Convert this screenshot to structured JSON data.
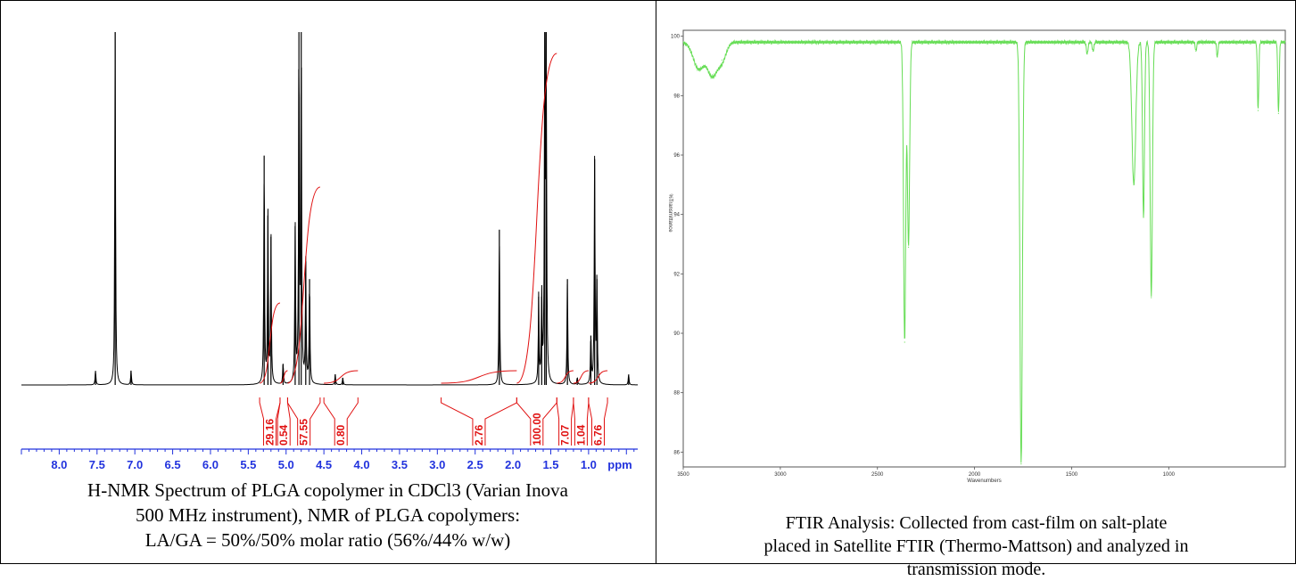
{
  "nmr": {
    "caption_lines": [
      "H-NMR Spectrum of PLGA copolymer in CDCl3 (Varian Inova",
      "500 MHz instrument), NMR of PLGA copolymers:",
      "LA/GA = 50%/50% molar ratio (56%/44% w/w)"
    ]
  },
  "ftir": {
    "caption_lines": [
      "FTIR Analysis: Collected from cast-film on salt-plate",
      "placed in Satellite FTIR (Thermo-Mattson) and analyzed in",
      "transmission mode."
    ]
  },
  "colors": {
    "nmr_spectrum": "#000000",
    "nmr_integral": "#e01010",
    "nmr_axis": "#2233dd",
    "ftir_spectrum": "#66dd55",
    "ftir_axis": "#555555"
  },
  "chart_data": [
    {
      "type": "line",
      "name": "nmr",
      "xlabel": "ppm",
      "x_reversed": true,
      "xlim": [
        8.5,
        0.35
      ],
      "x_ticks": [
        "8.0",
        "7.5",
        "7.0",
        "6.5",
        "6.0",
        "5.5",
        "5.0",
        "4.5",
        "4.0",
        "3.5",
        "3.0",
        "2.5",
        "2.0",
        "1.5",
        "1.0"
      ],
      "x_tick_values": [
        8.0,
        7.5,
        7.0,
        6.5,
        6.0,
        5.5,
        5.0,
        4.5,
        4.0,
        3.5,
        3.0,
        2.5,
        2.0,
        1.5,
        1.0
      ],
      "peaks": [
        {
          "ppm": 7.26,
          "height": 1.0
        },
        {
          "ppm": 7.52,
          "height": 0.04
        },
        {
          "ppm": 7.05,
          "height": 0.04
        },
        {
          "ppm": 5.29,
          "height": 0.65
        },
        {
          "ppm": 5.24,
          "height": 0.48
        },
        {
          "ppm": 5.2,
          "height": 0.42
        },
        {
          "ppm": 5.04,
          "height": 0.06
        },
        {
          "ppm": 4.88,
          "height": 0.45
        },
        {
          "ppm": 4.83,
          "height": 1.0
        },
        {
          "ppm": 4.8,
          "height": 1.0
        },
        {
          "ppm": 4.74,
          "height": 0.35
        },
        {
          "ppm": 4.69,
          "height": 0.3
        },
        {
          "ppm": 4.35,
          "height": 0.03
        },
        {
          "ppm": 4.25,
          "height": 0.02
        },
        {
          "ppm": 2.18,
          "height": 0.44
        },
        {
          "ppm": 1.66,
          "height": 0.25
        },
        {
          "ppm": 1.62,
          "height": 0.25
        },
        {
          "ppm": 1.58,
          "height": 1.0
        },
        {
          "ppm": 1.56,
          "height": 1.0
        },
        {
          "ppm": 1.28,
          "height": 0.3
        },
        {
          "ppm": 1.15,
          "height": 0.02
        },
        {
          "ppm": 0.97,
          "height": 0.14
        },
        {
          "ppm": 0.92,
          "height": 0.64
        },
        {
          "ppm": 0.89,
          "height": 0.3
        },
        {
          "ppm": 0.47,
          "height": 0.03
        }
      ],
      "integrals": [
        {
          "value": "29.16",
          "from": 5.35,
          "to": 5.08
        },
        {
          "value": "0.54",
          "from": 5.08,
          "to": 4.98
        },
        {
          "value": "57.55",
          "from": 4.98,
          "to": 4.55
        },
        {
          "value": "0.80",
          "from": 4.5,
          "to": 4.05
        },
        {
          "value": "2.76",
          "from": 2.95,
          "to": 1.95
        },
        {
          "value": "100.00",
          "from": 1.95,
          "to": 1.42
        },
        {
          "value": "7.07",
          "from": 1.42,
          "to": 1.2
        },
        {
          "value": "1.04",
          "from": 1.2,
          "to": 1.0
        },
        {
          "value": "6.76",
          "from": 1.0,
          "to": 0.75
        }
      ]
    },
    {
      "type": "line",
      "name": "ftir",
      "xlabel": "Wavenumbers",
      "ylabel": "%Transmittance",
      "x_reversed": true,
      "xlim": [
        3500,
        400
      ],
      "ylim": [
        85.5,
        100.2
      ],
      "x_ticks": [
        "3500",
        "3000",
        "2500",
        "2000",
        "1500",
        "1000"
      ],
      "x_tick_values": [
        3500,
        3000,
        2500,
        2000,
        1500,
        1000
      ],
      "y_ticks": [
        "100",
        "98",
        "96",
        "94",
        "92",
        "90",
        "88",
        "86"
      ],
      "y_tick_values": [
        100,
        98,
        96,
        94,
        92,
        90,
        88,
        86
      ],
      "baseline": 99.8,
      "bands": [
        {
          "cm": 3420,
          "min": 98.9,
          "width": 40
        },
        {
          "cm": 3350,
          "min": 98.7,
          "width": 35
        },
        {
          "cm": 3300,
          "min": 99.2,
          "width": 30
        },
        {
          "cm": 2360,
          "min": 89.7,
          "width": 8
        },
        {
          "cm": 2340,
          "min": 92.9,
          "width": 8
        },
        {
          "cm": 1760,
          "min": 85.6,
          "width": 9
        },
        {
          "cm": 1420,
          "min": 99.4,
          "width": 6
        },
        {
          "cm": 1390,
          "min": 99.5,
          "width": 6
        },
        {
          "cm": 1180,
          "min": 95.0,
          "width": 14
        },
        {
          "cm": 1130,
          "min": 93.9,
          "width": 7
        },
        {
          "cm": 1090,
          "min": 91.2,
          "width": 8
        },
        {
          "cm": 860,
          "min": 99.5,
          "width": 5
        },
        {
          "cm": 750,
          "min": 99.3,
          "width": 5
        },
        {
          "cm": 540,
          "min": 97.5,
          "width": 5
        },
        {
          "cm": 435,
          "min": 97.4,
          "width": 5
        }
      ]
    }
  ]
}
